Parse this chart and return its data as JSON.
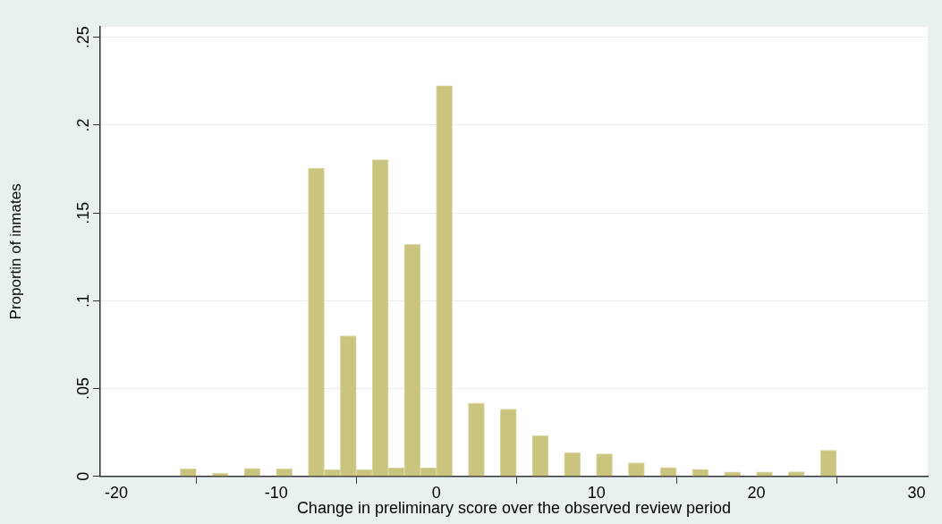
{
  "chart_data": {
    "type": "histogram",
    "xlabel": "Change in preliminary score over the observed review period",
    "ylabel": "Proportin of inmates",
    "bins": [
      -16,
      -15,
      -14,
      -13,
      -12,
      -11,
      -10,
      -9,
      -8,
      -7,
      -6,
      -5,
      -4,
      -3,
      -2,
      -1,
      0,
      1,
      2,
      3,
      4,
      5,
      6,
      7,
      8,
      9,
      10,
      11,
      12,
      13,
      14,
      15,
      16,
      17,
      18,
      19,
      20,
      21,
      22,
      23,
      24,
      25
    ],
    "values": [
      0.0043,
      0,
      0.0018,
      0,
      0.0046,
      0,
      0.0043,
      0,
      0.1755,
      0.0039,
      0.0801,
      0.0039,
      0.1803,
      0.005,
      0.1321,
      0.005,
      0.2225,
      0,
      0.0417,
      0,
      0.0383,
      0,
      0.0232,
      0,
      0.0135,
      0,
      0.0128,
      0,
      0.0078,
      0,
      0.0051,
      0,
      0.0041,
      0,
      0.0025,
      0,
      0.0025,
      0,
      0.0027,
      0,
      0.0149
    ],
    "color": "#cbc47f",
    "xlim": [
      -21,
      30.7
    ],
    "xticks": [
      -20,
      -10,
      0,
      10,
      20,
      30
    ],
    "ylim": [
      0,
      0.256
    ],
    "yticks": [
      {
        "value": 0,
        "label": "0"
      },
      {
        "value": 0.05,
        "label": ".05"
      },
      {
        "value": 0.1,
        "label": ".1"
      },
      {
        "value": 0.15,
        "label": ".15"
      },
      {
        "value": 0.2,
        "label": ".2"
      },
      {
        "value": 0.25,
        "label": ".25"
      }
    ],
    "grid": "y",
    "legend": false
  }
}
